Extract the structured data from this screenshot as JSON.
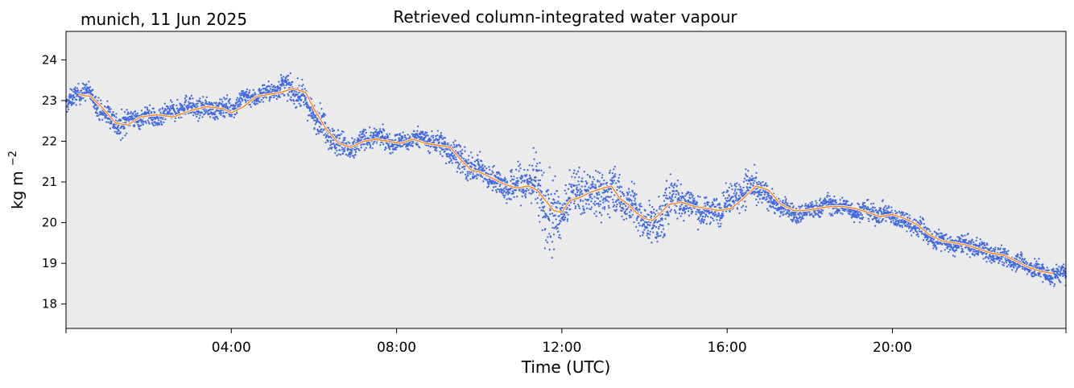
{
  "header": {
    "location_date": "munich, 11 Jun 2025"
  },
  "chart_data": {
    "type": "scatter",
    "title": "Retrieved column-integrated water vapour",
    "xlabel": "Time (UTC)",
    "ylabel_base": "kg m",
    "ylabel_exponent": "−2",
    "xlim_hours": [
      0,
      24.2
    ],
    "ylim": [
      17.4,
      24.7
    ],
    "x_ticks": [
      {
        "hour": 0,
        "label": ""
      },
      {
        "hour": 4,
        "label": "04:00"
      },
      {
        "hour": 8,
        "label": "08:00"
      },
      {
        "hour": 12,
        "label": "12:00"
      },
      {
        "hour": 16,
        "label": "16:00"
      },
      {
        "hour": 20,
        "label": "20:00"
      },
      {
        "hour": 24.2,
        "label": ""
      }
    ],
    "y_ticks": [
      {
        "value": 18,
        "label": "18"
      },
      {
        "value": 19,
        "label": "19"
      },
      {
        "value": 20,
        "label": "20"
      },
      {
        "value": 21,
        "label": "21"
      },
      {
        "value": 22,
        "label": "22"
      },
      {
        "value": 23,
        "label": "23"
      },
      {
        "value": 24,
        "label": "24"
      }
    ],
    "colors": {
      "background": "#ebebeb",
      "raw": "#4169e1",
      "smooth": "#ff7f0e"
    },
    "series": [
      {
        "role": "raw",
        "style": "dense scatter band",
        "x": [
          0.0,
          0.3,
          0.5,
          0.7,
          1.0,
          1.3,
          1.6,
          2.0,
          2.3,
          2.6,
          3.0,
          3.3,
          3.6,
          4.0,
          4.3,
          4.6,
          5.0,
          5.3,
          5.5,
          5.8,
          6.0,
          6.3,
          6.6,
          6.9,
          7.2,
          7.5,
          7.8,
          8.1,
          8.4,
          8.7,
          9.0,
          9.3,
          9.6,
          9.8,
          10.0,
          10.3,
          10.6,
          10.9,
          11.2,
          11.4,
          11.6,
          11.7,
          11.8,
          11.9,
          12.0,
          12.2,
          12.4,
          12.6,
          12.8,
          13.0,
          13.2,
          13.4,
          13.6,
          13.8,
          14.0,
          14.2,
          14.4,
          14.6,
          14.8,
          15.0,
          15.2,
          15.4,
          15.6,
          15.8,
          16.0,
          16.2,
          16.4,
          16.6,
          16.8,
          17.0,
          17.3,
          17.6,
          17.9,
          18.2,
          18.5,
          18.8,
          19.1,
          19.4,
          19.7,
          20.0,
          20.3,
          20.6,
          20.9,
          21.2,
          21.5,
          21.8,
          22.1,
          22.4,
          22.7,
          23.0,
          23.3,
          23.6,
          23.9,
          24.2
        ],
        "center": [
          22.85,
          23.15,
          23.2,
          23.0,
          22.7,
          22.35,
          22.5,
          22.65,
          22.6,
          22.7,
          22.85,
          22.85,
          22.8,
          22.75,
          23.1,
          23.15,
          23.2,
          23.3,
          23.3,
          23.05,
          22.7,
          22.2,
          21.9,
          21.85,
          22.05,
          22.05,
          22.0,
          22.0,
          22.1,
          22.0,
          21.9,
          21.9,
          21.5,
          21.3,
          21.25,
          21.1,
          21.0,
          20.85,
          20.95,
          20.8,
          20.6,
          20.4,
          20.2,
          20.2,
          20.25,
          20.6,
          20.6,
          20.75,
          20.8,
          20.85,
          20.9,
          20.6,
          20.4,
          20.2,
          20.1,
          20.0,
          20.2,
          20.45,
          20.5,
          20.45,
          20.45,
          20.35,
          20.3,
          20.3,
          20.4,
          20.6,
          20.85,
          20.95,
          20.85,
          20.55,
          20.35,
          20.25,
          20.3,
          20.35,
          20.4,
          20.4,
          20.35,
          20.25,
          20.15,
          20.2,
          20.1,
          19.9,
          19.6,
          19.55,
          19.5,
          19.45,
          19.3,
          19.25,
          19.2,
          19.05,
          18.85,
          18.8,
          18.75,
          18.75
        ],
        "spread": [
          0.2,
          0.2,
          0.2,
          0.2,
          0.25,
          0.3,
          0.2,
          0.2,
          0.2,
          0.2,
          0.22,
          0.2,
          0.2,
          0.22,
          0.2,
          0.2,
          0.2,
          0.25,
          0.25,
          0.3,
          0.3,
          0.3,
          0.3,
          0.25,
          0.2,
          0.2,
          0.2,
          0.2,
          0.2,
          0.2,
          0.25,
          0.3,
          0.3,
          0.3,
          0.25,
          0.25,
          0.3,
          0.4,
          0.5,
          0.6,
          0.8,
          0.9,
          0.9,
          0.6,
          0.4,
          0.4,
          0.5,
          0.5,
          0.5,
          0.5,
          0.5,
          0.45,
          0.45,
          0.45,
          0.4,
          0.4,
          0.5,
          0.5,
          0.45,
          0.35,
          0.3,
          0.3,
          0.3,
          0.3,
          0.3,
          0.35,
          0.4,
          0.4,
          0.3,
          0.25,
          0.2,
          0.2,
          0.2,
          0.2,
          0.2,
          0.2,
          0.2,
          0.2,
          0.2,
          0.2,
          0.2,
          0.22,
          0.22,
          0.2,
          0.2,
          0.2,
          0.2,
          0.2,
          0.2,
          0.2,
          0.2,
          0.2,
          0.2,
          0.2
        ]
      },
      {
        "role": "smooth",
        "style": "line",
        "x": [
          0.3,
          0.6,
          0.9,
          1.2,
          1.5,
          1.8,
          2.2,
          2.6,
          3.0,
          3.4,
          3.8,
          4.0,
          4.3,
          4.6,
          4.9,
          5.2,
          5.5,
          5.8,
          6.0,
          6.3,
          6.6,
          6.9,
          7.2,
          7.5,
          7.8,
          8.1,
          8.4,
          8.7,
          9.0,
          9.3,
          9.6,
          9.8,
          10.0,
          10.3,
          10.6,
          10.9,
          11.2,
          11.4,
          11.6,
          11.8,
          12.0,
          12.2,
          12.4,
          12.7,
          13.0,
          13.2,
          13.4,
          13.6,
          13.8,
          14.0,
          14.2,
          14.4,
          14.6,
          14.9,
          15.2,
          15.5,
          15.8,
          16.1,
          16.4,
          16.7,
          17.0,
          17.3,
          17.6,
          17.9,
          18.2,
          18.5,
          18.8,
          19.1,
          19.4,
          19.7,
          20.0,
          20.3,
          20.6,
          20.9,
          21.2,
          21.5,
          21.8,
          22.1,
          22.4,
          22.7,
          23.0,
          23.3,
          23.6,
          23.9
        ],
        "y": [
          23.15,
          23.1,
          22.8,
          22.45,
          22.4,
          22.6,
          22.65,
          22.6,
          22.75,
          22.85,
          22.8,
          22.7,
          22.85,
          23.1,
          23.15,
          23.2,
          23.3,
          23.2,
          22.8,
          22.3,
          21.95,
          21.85,
          22.0,
          22.05,
          22.0,
          21.95,
          22.05,
          21.95,
          21.9,
          21.85,
          21.5,
          21.3,
          21.25,
          21.1,
          20.95,
          20.85,
          20.9,
          20.8,
          20.55,
          20.3,
          20.25,
          20.55,
          20.6,
          20.75,
          20.85,
          20.9,
          20.6,
          20.45,
          20.25,
          20.1,
          20.05,
          20.25,
          20.45,
          20.5,
          20.4,
          20.35,
          20.3,
          20.35,
          20.6,
          20.9,
          20.8,
          20.45,
          20.3,
          20.3,
          20.35,
          20.4,
          20.4,
          20.35,
          20.25,
          20.15,
          20.2,
          20.1,
          19.95,
          19.7,
          19.55,
          19.5,
          19.45,
          19.35,
          19.25,
          19.2,
          19.05,
          18.9,
          18.8,
          18.75
        ]
      }
    ]
  }
}
